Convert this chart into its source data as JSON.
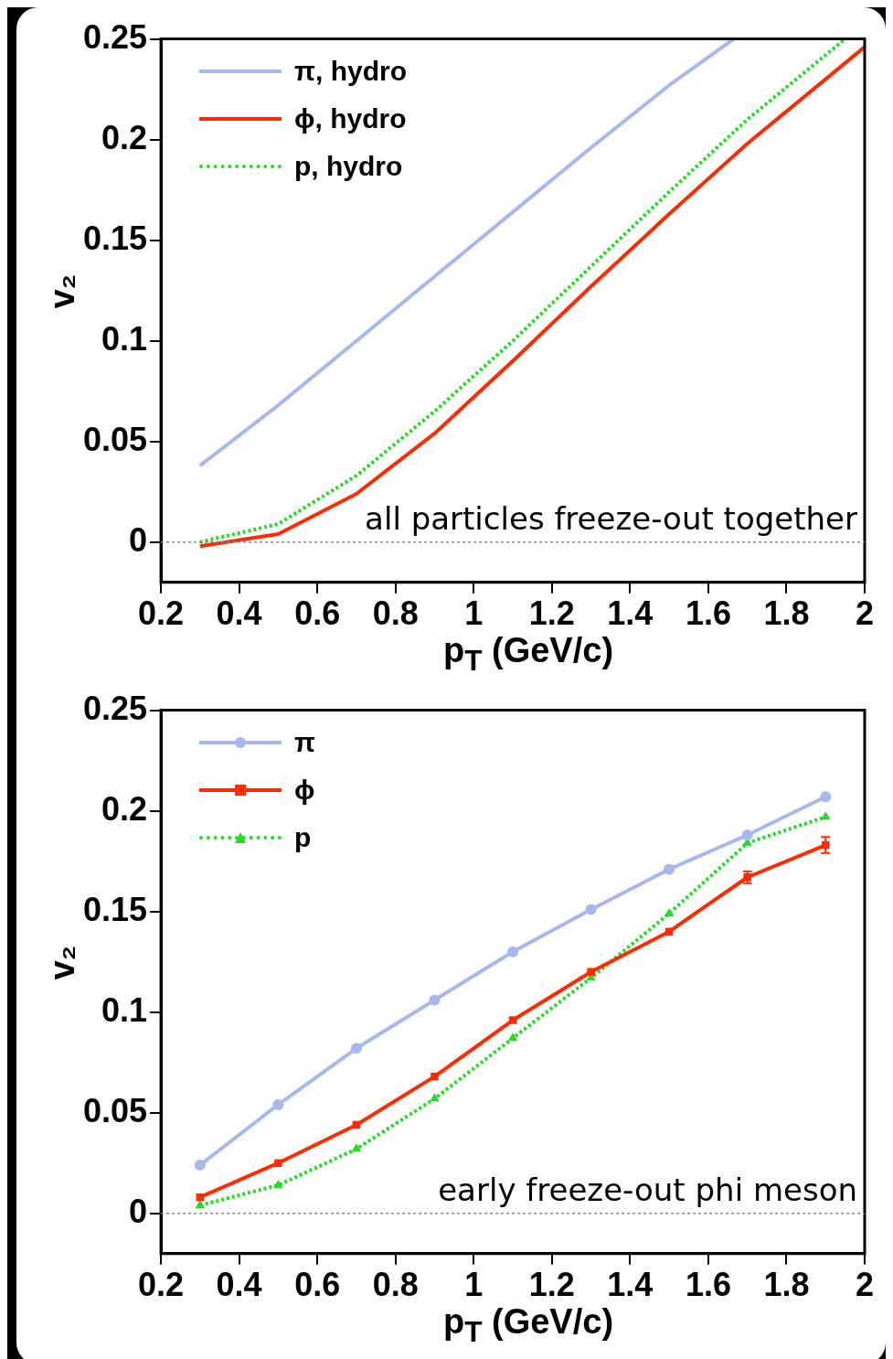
{
  "chart_data": [
    {
      "type": "line",
      "xlabel": "p$_{T}$ (GeV/c)",
      "ylabel": "v₂",
      "xlim": [
        0.2,
        2
      ],
      "ylim": [
        -0.02,
        0.25
      ],
      "xticks": [
        0.2,
        0.4,
        0.6,
        0.8,
        1,
        1.2,
        1.4,
        1.6,
        1.8,
        2
      ],
      "yticks": [
        0,
        0.05,
        0.1,
        0.15,
        0.2,
        0.25
      ],
      "legend": "top left",
      "grid": false,
      "ref_lines": [
        {
          "axis": "y",
          "value": 0,
          "color": "#888888",
          "line_style": "dotted"
        }
      ],
      "annotations": [
        "all particles freeze-out together"
      ],
      "series": [
        {
          "name": "π, hydro",
          "color": "#a8b8ee",
          "line_style": "solid",
          "x": [
            0.3,
            0.5,
            0.7,
            0.9,
            1.1,
            1.3,
            1.5,
            1.665
          ],
          "values": [
            0.038,
            0.068,
            0.1,
            0.132,
            0.164,
            0.196,
            0.227,
            0.25
          ]
        },
        {
          "name": "ϕ, hydro",
          "color": "#ff2a00",
          "line_style": "solid",
          "x": [
            0.3,
            0.5,
            0.7,
            0.9,
            1.1,
            1.3,
            1.5,
            1.7,
            1.9,
            2
          ],
          "values": [
            -0.002,
            0.004,
            0.024,
            0.054,
            0.09,
            0.127,
            0.163,
            0.198,
            0.23,
            0.246
          ]
        },
        {
          "name": "p, hydro",
          "color": "#22dd22",
          "line_style": "dotted",
          "x": [
            0.3,
            0.5,
            0.7,
            0.9,
            1.1,
            1.3,
            1.5,
            1.7,
            1.9,
            1.95
          ],
          "values": [
            0,
            0.009,
            0.033,
            0.065,
            0.1,
            0.137,
            0.174,
            0.21,
            0.242,
            0.25
          ]
        }
      ]
    },
    {
      "type": "line",
      "xlabel": "p$_{T}$ (GeV/c)",
      "ylabel": "v₂",
      "xlim": [
        0.2,
        2
      ],
      "ylim": [
        -0.02,
        0.25
      ],
      "xticks": [
        0.2,
        0.4,
        0.6,
        0.8,
        1,
        1.2,
        1.4,
        1.6,
        1.8,
        2
      ],
      "yticks": [
        0,
        0.05,
        0.1,
        0.15,
        0.2,
        0.25
      ],
      "legend": "top left",
      "grid": false,
      "ref_lines": [
        {
          "axis": "y",
          "value": 0,
          "color": "#888888",
          "line_style": "dotted"
        }
      ],
      "annotations": [
        "early freeze-out phi meson"
      ],
      "x": [
        0.3,
        0.5,
        0.7,
        0.9,
        1.1,
        1.3,
        1.5,
        1.7,
        1.9
      ],
      "series": [
        {
          "name": "π",
          "color": "#a8b8ee",
          "line_style": "solid",
          "marker": "circle",
          "values": [
            0.024,
            0.054,
            0.082,
            0.106,
            0.13,
            0.151,
            0.171,
            0.188,
            0.207
          ]
        },
        {
          "name": "ϕ",
          "color": "#ff2a00",
          "line_style": "solid",
          "marker": "square",
          "values": [
            0.008,
            0.025,
            0.044,
            0.068,
            0.096,
            0.12,
            0.14,
            0.167,
            0.183
          ],
          "errors": [
            null,
            null,
            null,
            null,
            null,
            null,
            null,
            0.003,
            0.004
          ]
        },
        {
          "name": "p",
          "color": "#22dd22",
          "line_style": "dotted",
          "marker": "triangle",
          "values": [
            0.004,
            0.014,
            0.032,
            0.057,
            0.087,
            0.117,
            0.149,
            0.184,
            0.197
          ]
        }
      ]
    }
  ]
}
